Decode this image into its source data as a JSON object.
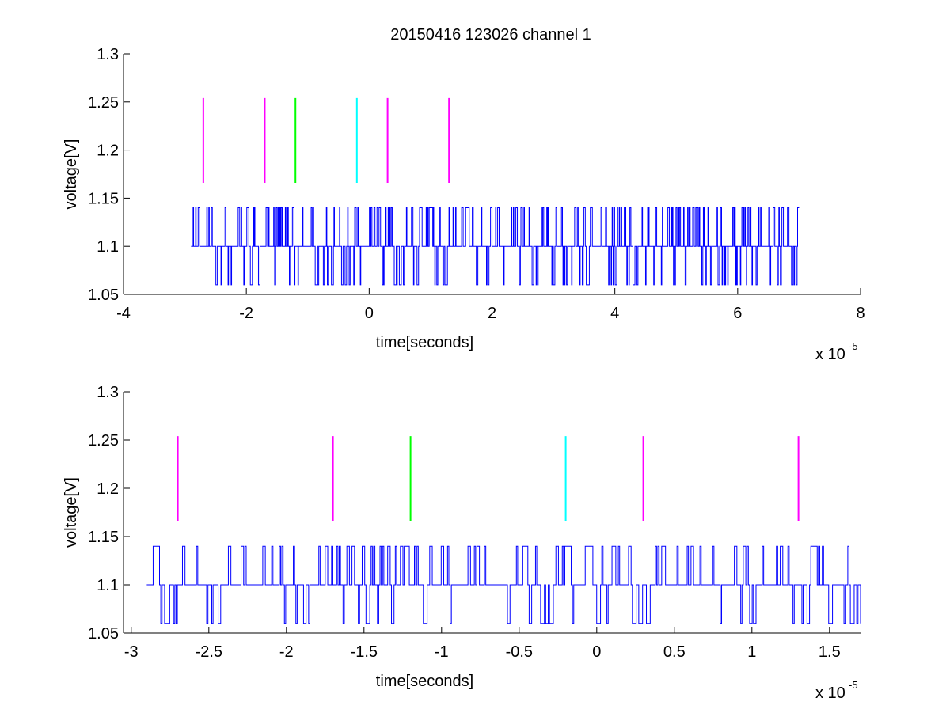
{
  "title": "20150416 123026 channel 1",
  "colors": {
    "background": "#ffffff",
    "axes": "#000000",
    "signal": "#0000ff",
    "marker_magenta": "#ff00ff",
    "marker_green": "#00ff00",
    "marker_cyan": "#00ffff"
  },
  "chart_data": [
    {
      "type": "line",
      "title": "20150416 123026 channel 1",
      "xlabel": "time[seconds]",
      "ylabel": "voltage[V]",
      "x_exponent_label": "x 10",
      "x_exponent": "-5",
      "xlim": [
        -4,
        8
      ],
      "ylim": [
        1.05,
        1.3
      ],
      "x_scale": 1e-05,
      "xticks": [
        -4,
        -2,
        0,
        2,
        4,
        6,
        8
      ],
      "xtick_labels": [
        "-4",
        "-2",
        "0",
        "2",
        "4",
        "6",
        "8"
      ],
      "yticks": [
        1.05,
        1.1,
        1.15,
        1.2,
        1.25,
        1.3
      ],
      "ytick_labels": [
        "1.05",
        "1.1",
        "1.15",
        "1.2",
        "1.25",
        "1.3"
      ],
      "grid": false,
      "legend": "none",
      "signal": {
        "x_range": [
          -2.9,
          7.0
        ],
        "levels": [
          1.06,
          1.1,
          1.14
        ],
        "baseline": 1.1,
        "samples": 1200,
        "color": "#0000ff"
      },
      "markers": [
        {
          "x": -2.7,
          "y0": 1.166,
          "y1": 1.254,
          "color": "#ff00ff"
        },
        {
          "x": -1.7,
          "y0": 1.166,
          "y1": 1.254,
          "color": "#ff00ff"
        },
        {
          "x": -1.2,
          "y0": 1.166,
          "y1": 1.254,
          "color": "#00ff00"
        },
        {
          "x": -0.2,
          "y0": 1.166,
          "y1": 1.254,
          "color": "#00ffff"
        },
        {
          "x": 0.3,
          "y0": 1.166,
          "y1": 1.254,
          "color": "#ff00ff"
        },
        {
          "x": 1.3,
          "y0": 1.166,
          "y1": 1.254,
          "color": "#ff00ff"
        }
      ]
    },
    {
      "type": "line",
      "title": "",
      "xlabel": "time[seconds]",
      "ylabel": "voltage[V]",
      "x_exponent_label": "x 10",
      "x_exponent": "-5",
      "xlim": [
        -3.05,
        1.7
      ],
      "ylim": [
        1.05,
        1.3
      ],
      "x_scale": 1e-05,
      "xticks": [
        -3,
        -2.5,
        -2,
        -1.5,
        -1,
        -0.5,
        0,
        0.5,
        1,
        1.5
      ],
      "xtick_labels": [
        "-3",
        "-2.5",
        "-2",
        "-1.5",
        "-1",
        "-0.5",
        "0",
        "0.5",
        "1",
        "1.5"
      ],
      "yticks": [
        1.05,
        1.1,
        1.15,
        1.2,
        1.25,
        1.3
      ],
      "ytick_labels": [
        "1.05",
        "1.1",
        "1.15",
        "1.2",
        "1.25",
        "1.3"
      ],
      "grid": false,
      "legend": "none",
      "signal": {
        "x_range": [
          -2.9,
          1.7
        ],
        "levels": [
          1.06,
          1.1,
          1.14
        ],
        "baseline": 1.1,
        "samples": 560,
        "color": "#0000ff"
      },
      "markers": [
        {
          "x": -2.7,
          "y0": 1.166,
          "y1": 1.254,
          "color": "#ff00ff"
        },
        {
          "x": -1.7,
          "y0": 1.166,
          "y1": 1.254,
          "color": "#ff00ff"
        },
        {
          "x": -1.2,
          "y0": 1.166,
          "y1": 1.254,
          "color": "#00ff00"
        },
        {
          "x": -0.2,
          "y0": 1.166,
          "y1": 1.254,
          "color": "#00ffff"
        },
        {
          "x": 0.3,
          "y0": 1.166,
          "y1": 1.254,
          "color": "#ff00ff"
        },
        {
          "x": 1.3,
          "y0": 1.166,
          "y1": 1.254,
          "color": "#ff00ff"
        }
      ]
    }
  ]
}
